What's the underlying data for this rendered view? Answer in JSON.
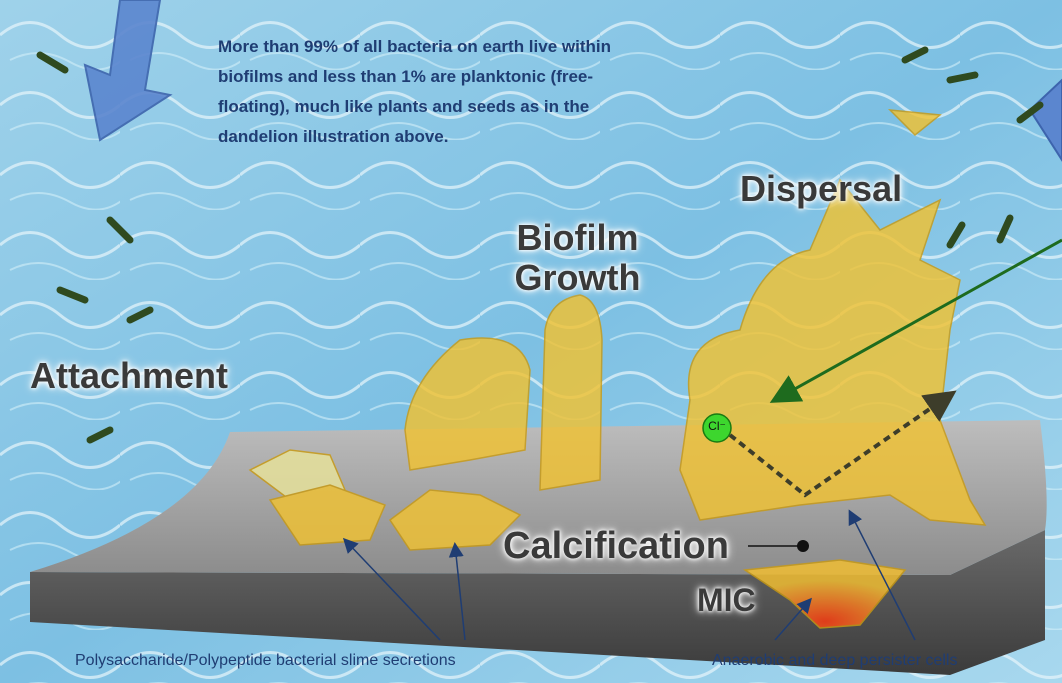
{
  "note": "More than 99% of all bacteria on earth live within biofilms and less than 1% are planktonic (free-floating), much like plants and seeds as in the dandelion illustration above.",
  "stages": {
    "attachment": "Attachment",
    "growth": "Biofilm Growth",
    "dispersal": "Dispersal",
    "calcification": "Calcification",
    "mic": "MIC"
  },
  "ion": "Cl⁻",
  "captions": {
    "slime": "Polysaccharide/Polypeptide bacterial slime secretions",
    "persister": "Anaerobic and deep persister cells"
  }
}
